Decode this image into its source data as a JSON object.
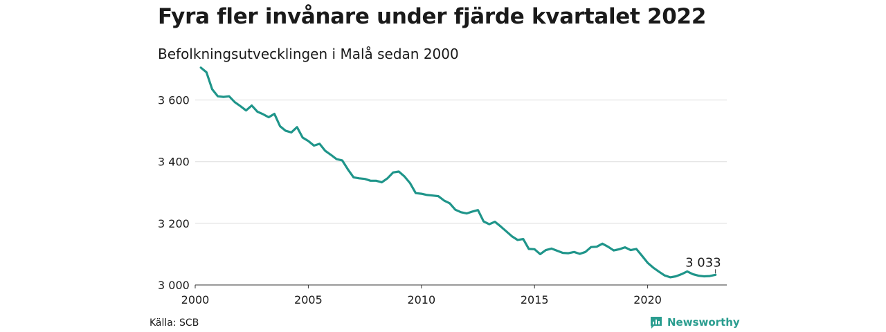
{
  "title": "Fyra fler invånare under fjärde kvartalet 2022",
  "subtitle": "Befolkningsutvecklingen i Malå sedan 2000",
  "source": "Källa: SCB",
  "brand": {
    "name": "Newsworthy",
    "icon": "newsworthy-logo-icon",
    "color": "#2a9d8f"
  },
  "colors": {
    "line": "#1f958a",
    "grid": "#dddddd",
    "axis": "#333333"
  },
  "chart_data": {
    "type": "line",
    "x_tick_labels": [
      "2000",
      "2005",
      "2010",
      "2015",
      "2020"
    ],
    "x_ticks": [
      2000,
      2005,
      2010,
      2015,
      2020
    ],
    "y_tick_labels": [
      "3 000",
      "3 200",
      "3 400",
      "3 600"
    ],
    "y_ticks": [
      3000,
      3200,
      3400,
      3600
    ],
    "ylim": [
      3000,
      3700
    ],
    "xlim": [
      2000,
      2023.5
    ],
    "grid": "horizontal",
    "end_label": "3 033",
    "series": [
      {
        "x": [
          2000.25,
          2000.5,
          2000.75,
          2001.0,
          2001.25,
          2001.5,
          2001.75,
          2002.0,
          2002.25,
          2002.5,
          2002.75,
          2003.0,
          2003.25,
          2003.5,
          2003.75,
          2004.0,
          2004.25,
          2004.5,
          2004.75,
          2005.0,
          2005.25,
          2005.5,
          2005.75,
          2006.0,
          2006.25,
          2006.5,
          2006.75,
          2007.0,
          2007.25,
          2007.5,
          2007.75,
          2008.0,
          2008.25,
          2008.5,
          2008.75,
          2009.0,
          2009.25,
          2009.5,
          2009.75,
          2010.0,
          2010.25,
          2010.5,
          2010.75,
          2011.0,
          2011.25,
          2011.5,
          2011.75,
          2012.0,
          2012.25,
          2012.5,
          2012.75,
          2013.0,
          2013.25,
          2013.5,
          2013.75,
          2014.0,
          2014.25,
          2014.5,
          2014.75,
          2015.0,
          2015.25,
          2015.5,
          2015.75,
          2016.0,
          2016.25,
          2016.5,
          2016.75,
          2017.0,
          2017.25,
          2017.5,
          2017.75,
          2018.0,
          2018.25,
          2018.5,
          2018.75,
          2019.0,
          2019.25,
          2019.5,
          2019.75,
          2020.0,
          2020.25,
          2020.5,
          2020.75,
          2021.0,
          2021.25,
          2021.5,
          2021.75,
          2022.0,
          2022.25,
          2022.5,
          2022.75,
          2023.0
        ],
        "values": [
          3705,
          3690,
          3635,
          3612,
          3610,
          3612,
          3593,
          3580,
          3566,
          3582,
          3562,
          3554,
          3544,
          3555,
          3515,
          3500,
          3495,
          3512,
          3478,
          3467,
          3452,
          3458,
          3435,
          3422,
          3408,
          3404,
          3375,
          3349,
          3346,
          3344,
          3338,
          3338,
          3333,
          3346,
          3365,
          3368,
          3352,
          3330,
          3298,
          3296,
          3292,
          3290,
          3288,
          3274,
          3265,
          3244,
          3236,
          3232,
          3238,
          3243,
          3206,
          3197,
          3205,
          3190,
          3174,
          3158,
          3146,
          3149,
          3117,
          3116,
          3100,
          3113,
          3118,
          3111,
          3104,
          3103,
          3107,
          3101,
          3107,
          3123,
          3124,
          3134,
          3124,
          3112,
          3116,
          3122,
          3113,
          3117,
          3095,
          3072,
          3056,
          3043,
          3031,
          3025,
          3028,
          3035,
          3044,
          3035,
          3030,
          3028,
          3029,
          3033
        ]
      }
    ]
  }
}
